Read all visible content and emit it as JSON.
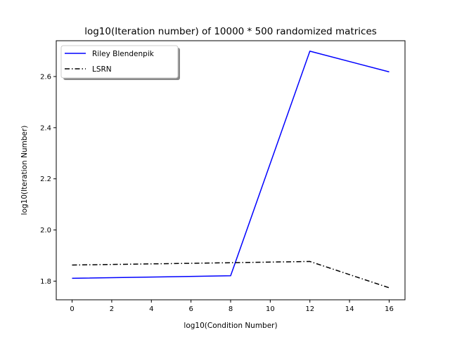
{
  "chart_data": {
    "type": "line",
    "title": "log10(Iteration number) of 10000 * 500 randomized matrices",
    "xlabel": "log10(Condition Number)",
    "ylabel": "log10(Iteration Number)",
    "x": [
      0,
      8,
      12,
      16
    ],
    "xlim": [
      -0.8,
      16.8
    ],
    "ylim": [
      1.727,
      2.74
    ],
    "xticks": [
      0,
      2,
      4,
      6,
      8,
      10,
      12,
      14,
      16
    ],
    "yticks": [
      1.8,
      2.0,
      2.2,
      2.4,
      2.6
    ],
    "ytick_labels": [
      "1.8",
      "2.0",
      "2.2",
      "2.4",
      "2.6"
    ],
    "grid": false,
    "legend_position": "top-left",
    "series": [
      {
        "name": "Riley Blendenpik",
        "color": "#0000ff",
        "style": "solid",
        "values": [
          1.811,
          1.821,
          2.699,
          2.618
        ]
      },
      {
        "name": "LSRN",
        "color": "#000000",
        "style": "dashdot",
        "values": [
          1.863,
          1.872,
          1.877,
          1.774
        ]
      }
    ]
  }
}
